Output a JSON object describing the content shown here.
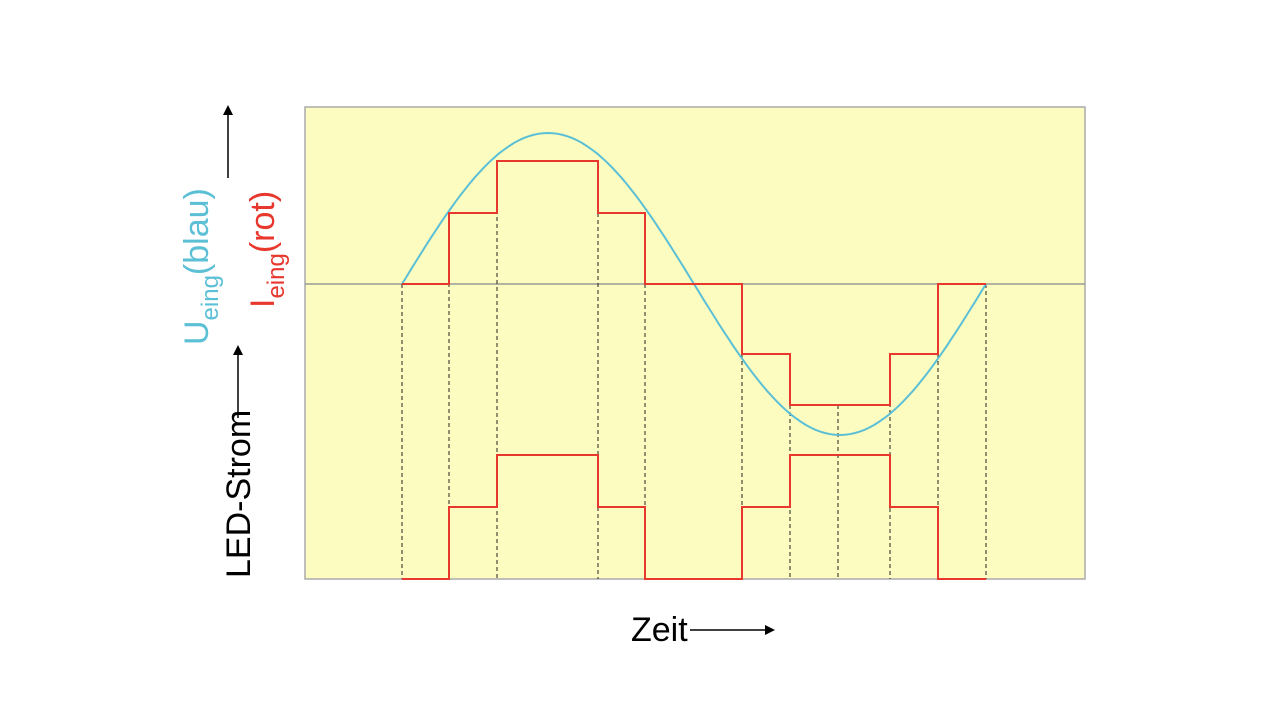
{
  "labels": {
    "u_label": {
      "main": "U",
      "sub": "eing",
      "suffix": "(blau)"
    },
    "i_label": {
      "main": "I",
      "sub": "eing",
      "suffix": "(rot)"
    },
    "led_label": "LED-Strom",
    "x_label": "Zeit"
  }
}
